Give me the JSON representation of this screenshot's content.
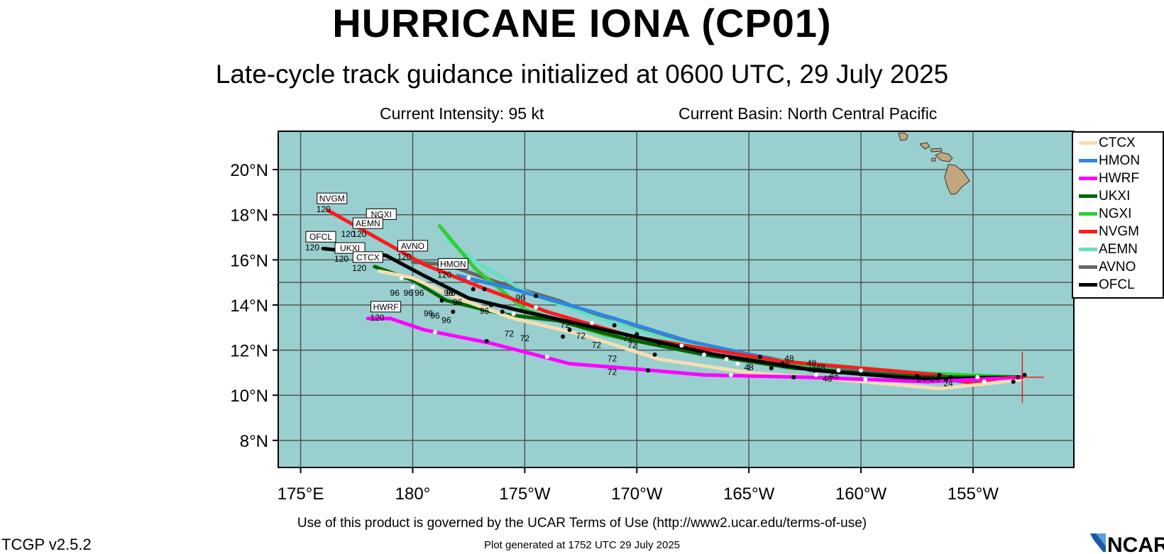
{
  "title": "HURRICANE IONA (CP01)",
  "subtitle": "Late-cycle track guidance initialized at 0600 UTC, 29 July 2025",
  "current_intensity": "Current Intensity: 95 kt",
  "current_basin": "Current Basin: North Central Pacific",
  "footer_terms": "Use of this product is governed by the UCAR Terms of Use (http://www2.ucar.edu/terms-of-use)",
  "footer_generated": "Plot generated at 1752 UTC   29 July 2025",
  "version": "TCGP v2.5.2",
  "logo_text": "NCAR",
  "colors": {
    "ocean": "#99cfcf",
    "land": "#c2a77e",
    "grid": "#555555",
    "storm_marker": "#e02020"
  },
  "map": {
    "lon_min": 174,
    "lon_max": 209.5,
    "lat_min": 6.8,
    "lat_max": 21.7,
    "lon_ticks": [
      {
        "v": 175,
        "label": "175°E"
      },
      {
        "v": 180,
        "label": "180°"
      },
      {
        "v": 185,
        "label": "175°W"
      },
      {
        "v": 190,
        "label": "170°W"
      },
      {
        "v": 195,
        "label": "165°W"
      },
      {
        "v": 200,
        "label": "160°W"
      },
      {
        "v": 205,
        "label": "155°W"
      }
    ],
    "lat_ticks": [
      {
        "v": 8,
        "label": "8°N"
      },
      {
        "v": 10,
        "label": "10°N"
      },
      {
        "v": 12,
        "label": "12°N"
      },
      {
        "v": 14,
        "label": "14°N"
      },
      {
        "v": 16,
        "label": "16°N"
      },
      {
        "v": 18,
        "label": "18°N"
      },
      {
        "v": 20,
        "label": "20°N"
      }
    ],
    "grid_lats": [
      15
    ],
    "storm_position": {
      "lon": 207.2,
      "lat": 10.8
    }
  },
  "legend": [
    {
      "name": "CTCX",
      "color": "#f5deb3"
    },
    {
      "name": "HMON",
      "color": "#2e86de"
    },
    {
      "name": "HWRF",
      "color": "#ff00ff"
    },
    {
      "name": "UKXI",
      "color": "#006400"
    },
    {
      "name": "NGXI",
      "color": "#32cd32"
    },
    {
      "name": "NVGM",
      "color": "#ff1a1a"
    },
    {
      "name": "AEMN",
      "color": "#66e0c0"
    },
    {
      "name": "AVNO",
      "color": "#666666"
    },
    {
      "name": "OFCL",
      "color": "#000000"
    }
  ],
  "tracks": [
    {
      "name": "AVNO",
      "color": "#666666",
      "points": [
        [
          207.2,
          10.8
        ],
        [
          200.5,
          11.1
        ],
        [
          196.2,
          11.6
        ],
        [
          192.3,
          12.3
        ],
        [
          189.0,
          13.2
        ],
        [
          186.5,
          14.2
        ],
        [
          183.8,
          15.0
        ],
        [
          181.5,
          15.8
        ],
        [
          180.0,
          15.9
        ]
      ]
    },
    {
      "name": "AEMN",
      "color": "#66e0c0",
      "points": [
        [
          207.2,
          10.8
        ],
        [
          201.5,
          11.1
        ],
        [
          196.0,
          11.6
        ],
        [
          192.0,
          12.3
        ],
        [
          188.0,
          13.5
        ],
        [
          185.0,
          14.6
        ],
        [
          183.0,
          15.8
        ],
        [
          181.5,
          16.9
        ]
      ]
    },
    {
      "name": "NGXI",
      "color": "#32cd32",
      "points": [
        [
          207.2,
          10.8
        ],
        [
          202.0,
          11.0
        ],
        [
          196.5,
          11.4
        ],
        [
          192.5,
          11.9
        ],
        [
          188.5,
          12.7
        ],
        [
          185.0,
          13.8
        ],
        [
          182.8,
          15.6
        ],
        [
          181.2,
          17.5
        ]
      ]
    },
    {
      "name": "HMON",
      "color": "#2e86de",
      "points": [
        [
          207.2,
          10.8
        ],
        [
          204.5,
          10.6
        ],
        [
          202.5,
          10.9
        ],
        [
          196.5,
          11.5
        ],
        [
          192.3,
          12.4
        ],
        [
          188.0,
          13.7
        ],
        [
          184.5,
          14.7
        ],
        [
          182.0,
          15.3
        ]
      ]
    },
    {
      "name": "NVGM",
      "color": "#ff1a1a",
      "points": [
        [
          207.2,
          10.8
        ],
        [
          205.0,
          10.5
        ],
        [
          203.5,
          10.9
        ],
        [
          196.5,
          11.5
        ],
        [
          192.8,
          12.1
        ],
        [
          189.8,
          12.6
        ],
        [
          186.0,
          13.7
        ],
        [
          183.0,
          14.8
        ],
        [
          180.5,
          15.8
        ],
        [
          176.2,
          18.2
        ]
      ]
    },
    {
      "name": "UKXI",
      "color": "#006400",
      "points": [
        [
          207.2,
          10.8
        ],
        [
          203.0,
          10.8
        ],
        [
          197.0,
          11.2
        ],
        [
          193.0,
          11.8
        ],
        [
          189.5,
          12.5
        ],
        [
          186.5,
          13.3
        ],
        [
          184.0,
          13.6
        ],
        [
          181.5,
          14.2
        ],
        [
          180.0,
          15.1
        ],
        [
          178.3,
          15.7
        ]
      ]
    },
    {
      "name": "OFCL",
      "color": "#000000",
      "points": [
        [
          207.2,
          10.8
        ],
        [
          203.0,
          10.7
        ],
        [
          198.0,
          11.1
        ],
        [
          193.5,
          11.8
        ],
        [
          189.0,
          12.8
        ],
        [
          185.0,
          13.7
        ],
        [
          182.5,
          14.3
        ],
        [
          180.5,
          15.3
        ],
        [
          178.8,
          16.2
        ],
        [
          176.0,
          16.5
        ]
      ]
    },
    {
      "name": "CTCX",
      "color": "#f5deb3",
      "points": [
        [
          207.2,
          10.7
        ],
        [
          205.5,
          10.5
        ],
        [
          203.5,
          10.3
        ],
        [
          199.0,
          10.7
        ],
        [
          195.0,
          11.0
        ],
        [
          191.0,
          11.6
        ],
        [
          187.5,
          12.7
        ],
        [
          184.5,
          13.4
        ],
        [
          182.0,
          14.3
        ],
        [
          180.0,
          15.2
        ],
        [
          178.5,
          15.5
        ]
      ]
    },
    {
      "name": "HWRF",
      "color": "#ff00ff",
      "points": [
        [
          207.2,
          10.8
        ],
        [
          203.0,
          10.6
        ],
        [
          197.5,
          10.8
        ],
        [
          193.0,
          10.9
        ],
        [
          189.5,
          11.2
        ],
        [
          187.0,
          11.4
        ],
        [
          183.5,
          12.3
        ],
        [
          180.5,
          12.9
        ],
        [
          179.0,
          13.4
        ],
        [
          178.0,
          13.4
        ]
      ]
    }
  ],
  "track_dots": [
    {
      "lon": 204.0,
      "lat": 10.8,
      "color": "#000"
    },
    {
      "lon": 203.8,
      "lat": 10.7,
      "color": "#000"
    },
    {
      "lon": 203.5,
      "lat": 10.9,
      "color": "#000"
    },
    {
      "lon": 203.0,
      "lat": 10.75,
      "color": "#000"
    },
    {
      "lon": 202.5,
      "lat": 10.85,
      "color": "#000"
    },
    {
      "lon": 206.8,
      "lat": 10.6,
      "color": "#000"
    },
    {
      "lon": 207.0,
      "lat": 10.8,
      "color": "#000"
    },
    {
      "lon": 207.3,
      "lat": 10.9,
      "color": "#000"
    },
    {
      "lon": 205.5,
      "lat": 10.6,
      "color": "#fff"
    },
    {
      "lon": 205.2,
      "lat": 10.8,
      "color": "#fff"
    },
    {
      "lon": 200.0,
      "lat": 11.1,
      "color": "#fff"
    },
    {
      "lon": 200.2,
      "lat": 10.7,
      "color": "#fff"
    },
    {
      "lon": 199.0,
      "lat": 11.1,
      "color": "#fff"
    },
    {
      "lon": 196.5,
      "lat": 11.4,
      "color": "#000"
    },
    {
      "lon": 196.0,
      "lat": 11.2,
      "color": "#000"
    },
    {
      "lon": 197.0,
      "lat": 10.8,
      "color": "#000"
    },
    {
      "lon": 195.5,
      "lat": 11.7,
      "color": "#000"
    },
    {
      "lon": 194.5,
      "lat": 11.4,
      "color": "#fff"
    },
    {
      "lon": 194.0,
      "lat": 11.6,
      "color": "#fff"
    },
    {
      "lon": 193.0,
      "lat": 11.8,
      "color": "#fff"
    },
    {
      "lon": 192.0,
      "lat": 12.2,
      "color": "#fff"
    },
    {
      "lon": 190.8,
      "lat": 11.8,
      "color": "#000"
    },
    {
      "lon": 191.0,
      "lat": 12.3,
      "color": "#000"
    },
    {
      "lon": 190.0,
      "lat": 12.7,
      "color": "#000"
    },
    {
      "lon": 190.5,
      "lat": 11.1,
      "color": "#000"
    },
    {
      "lon": 189.0,
      "lat": 13.1,
      "color": "#000"
    },
    {
      "lon": 188.0,
      "lat": 13.2,
      "color": "#fff"
    },
    {
      "lon": 187.0,
      "lat": 12.9,
      "color": "#000"
    },
    {
      "lon": 186.7,
      "lat": 12.6,
      "color": "#000"
    },
    {
      "lon": 186.0,
      "lat": 11.7,
      "color": "#fff"
    },
    {
      "lon": 185.5,
      "lat": 13.9,
      "color": "#fff"
    },
    {
      "lon": 185.5,
      "lat": 14.4,
      "color": "#000"
    },
    {
      "lon": 184.0,
      "lat": 13.7,
      "color": "#000"
    },
    {
      "lon": 184.5,
      "lat": 13.6,
      "color": "#fff"
    },
    {
      "lon": 183.5,
      "lat": 14.0,
      "color": "#000"
    },
    {
      "lon": 183.2,
      "lat": 14.7,
      "color": "#000"
    },
    {
      "lon": 183.3,
      "lat": 12.4,
      "color": "#000"
    },
    {
      "lon": 182.7,
      "lat": 14.7,
      "color": "#000"
    },
    {
      "lon": 182.5,
      "lat": 15.2,
      "color": "#fff"
    },
    {
      "lon": 181.8,
      "lat": 13.7,
      "color": "#000"
    },
    {
      "lon": 181.3,
      "lat": 14.2,
      "color": "#000"
    },
    {
      "lon": 181.0,
      "lat": 12.8,
      "color": "#fff"
    },
    {
      "lon": 180.0,
      "lat": 14.8,
      "color": "#fff"
    },
    {
      "lon": 179.5,
      "lat": 15.2,
      "color": "#fff"
    },
    {
      "lon": 194.2,
      "lat": 10.9,
      "color": "#fff"
    },
    {
      "lon": 198.0,
      "lat": 10.9,
      "color": "#fff"
    }
  ],
  "track_labels": [
    {
      "lon": 202.7,
      "lat": 10.6,
      "text": "24"
    },
    {
      "lon": 203.3,
      "lat": 10.6,
      "text": "24"
    },
    {
      "lon": 203.9,
      "lat": 10.4,
      "text": "24"
    },
    {
      "lon": 197.8,
      "lat": 11.3,
      "text": "48"
    },
    {
      "lon": 197.8,
      "lat": 11.0,
      "text": "48"
    },
    {
      "lon": 198.2,
      "lat": 11.1,
      "text": "48"
    },
    {
      "lon": 198.5,
      "lat": 10.6,
      "text": "48"
    },
    {
      "lon": 198.8,
      "lat": 10.75,
      "text": "48"
    },
    {
      "lon": 195.0,
      "lat": 11.1,
      "text": "48"
    },
    {
      "lon": 196.6,
      "lat": 11.2,
      "text": "48"
    },
    {
      "lon": 196.8,
      "lat": 11.5,
      "text": "48"
    },
    {
      "lon": 189.8,
      "lat": 12.1,
      "text": "72"
    },
    {
      "lon": 189.6,
      "lat": 12.4,
      "text": "72"
    },
    {
      "lon": 188.9,
      "lat": 11.5,
      "text": "72"
    },
    {
      "lon": 188.2,
      "lat": 12.1,
      "text": "72"
    },
    {
      "lon": 187.5,
      "lat": 12.5,
      "text": "72"
    },
    {
      "lon": 186.8,
      "lat": 13.0,
      "text": "72"
    },
    {
      "lon": 185.0,
      "lat": 12.4,
      "text": "72"
    },
    {
      "lon": 184.3,
      "lat": 12.6,
      "text": "72"
    },
    {
      "lon": 188.9,
      "lat": 10.9,
      "text": "72"
    },
    {
      "lon": 183.2,
      "lat": 13.6,
      "text": "96"
    },
    {
      "lon": 181.5,
      "lat": 13.2,
      "text": "96"
    },
    {
      "lon": 181.7,
      "lat": 14.4,
      "text": "96"
    },
    {
      "lon": 181.0,
      "lat": 13.4,
      "text": "96"
    },
    {
      "lon": 178.7,
      "lat": 13.8,
      "text": "96"
    },
    {
      "lon": 179.2,
      "lat": 14.4,
      "text": "96"
    },
    {
      "lon": 180.3,
      "lat": 14.4,
      "text": "96"
    },
    {
      "lon": 180.7,
      "lat": 13.5,
      "text": "96"
    },
    {
      "lon": 182.0,
      "lat": 14.0,
      "text": "96"
    },
    {
      "lon": 179.8,
      "lat": 14.4,
      "text": "96"
    },
    {
      "lon": 184.8,
      "lat": 14.2,
      "text": "96"
    },
    {
      "lon": 181.6,
      "lat": 14.4,
      "text": "96"
    }
  ],
  "model_labels": [
    {
      "lon": 176.4,
      "lat": 18.3,
      "text": "NVGM",
      "num": "120"
    },
    {
      "lon": 178.6,
      "lat": 17.6,
      "text": "NGXI",
      "num": "120"
    },
    {
      "lon": 178.0,
      "lat": 17.2,
      "text": "AEMN",
      "num": "120"
    },
    {
      "lon": 177.5,
      "lat": 17.2,
      "text": "AEMN",
      "num": "120",
      "hide_box": true
    },
    {
      "lon": 175.9,
      "lat": 16.6,
      "text": "OFCL",
      "num": "120"
    },
    {
      "lon": 177.2,
      "lat": 16.1,
      "text": "UKXI",
      "num": "120"
    },
    {
      "lon": 178.0,
      "lat": 15.7,
      "text": "CTCX",
      "num": "120"
    },
    {
      "lon": 180.0,
      "lat": 16.2,
      "text": "AVNO",
      "num": "120"
    },
    {
      "lon": 181.8,
      "lat": 15.4,
      "text": "HMON",
      "num": "120"
    },
    {
      "lon": 178.8,
      "lat": 13.5,
      "text": "HWRF",
      "num": "120"
    }
  ]
}
